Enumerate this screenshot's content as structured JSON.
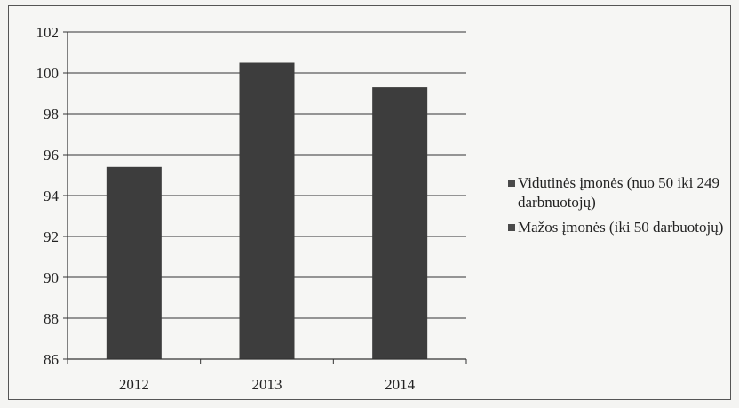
{
  "chart_data": {
    "type": "bar",
    "categories": [
      "2012",
      "2013",
      "2014"
    ],
    "series": [
      {
        "name": "Vidutinės įmonės (nuo 50 iki 249 darbnuotojų)",
        "values": [
          95.4,
          100.5,
          99.3
        ]
      },
      {
        "name": "Mažos įmonės (iki 50 darbuotojų)",
        "values": [
          null,
          null,
          null
        ]
      }
    ],
    "ylim": [
      86,
      102
    ],
    "yticks": [
      "86",
      "88",
      "90",
      "92",
      "94",
      "96",
      "98",
      "100",
      "102"
    ],
    "grid": true,
    "legend_position": "right",
    "colors": {
      "bar": "#3d3d3d",
      "legend_1": "#4a4a4a",
      "legend_2": "#4a4a4a",
      "grid": "#333333",
      "background": "#f6f6f4"
    }
  }
}
